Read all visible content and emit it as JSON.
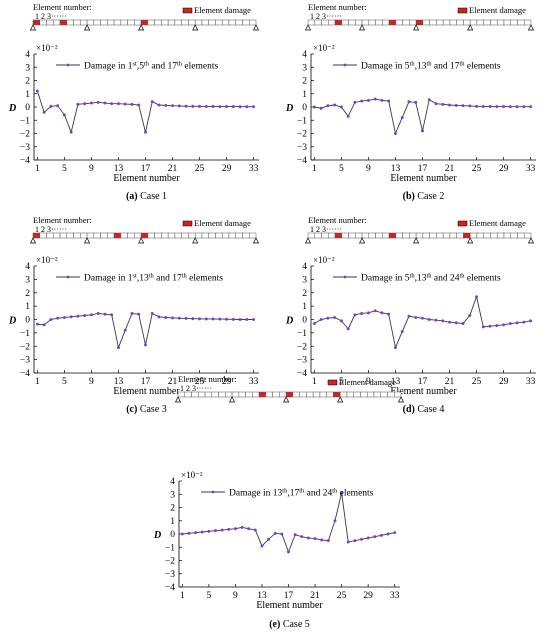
{
  "ui": {
    "colors": {
      "line": "#3a3a3a",
      "marker": "#7a3ad8",
      "damage": "#d42020",
      "axis": "#000000"
    }
  },
  "chart_data": [
    {
      "type": "line",
      "caption": "(a) Case 1",
      "beam_label": "Element number:",
      "beam_ticks": "1 2 3······",
      "legend_damage": "Element damage",
      "damaged_elements": [
        1,
        5,
        17
      ],
      "legend_line": "Damage in 1st,5th and 17th elements",
      "ylabel": "D",
      "xlabel": "Element number",
      "exponent": "×10⁻²",
      "ylim": [
        -4,
        4
      ],
      "yticks": [
        -4,
        -3,
        -2,
        -1,
        0,
        1,
        2,
        3,
        4
      ],
      "xticks": [
        1,
        5,
        9,
        13,
        17,
        21,
        25,
        29,
        33
      ],
      "x": [
        1,
        2,
        3,
        4,
        5,
        6,
        7,
        8,
        9,
        10,
        11,
        12,
        13,
        14,
        15,
        16,
        17,
        18,
        19,
        20,
        21,
        22,
        23,
        24,
        25,
        26,
        27,
        28,
        29,
        30,
        31,
        32,
        33
      ],
      "values": [
        1.2,
        -0.4,
        0.05,
        0.1,
        -0.6,
        -1.9,
        0.2,
        0.25,
        0.3,
        0.35,
        0.3,
        0.25,
        0.25,
        0.22,
        0.2,
        0.15,
        -1.9,
        0.4,
        0.15,
        0.12,
        0.1,
        0.08,
        0.06,
        0.05,
        0.05,
        0.04,
        0.04,
        0.03,
        0.03,
        0.03,
        0.02,
        0.02,
        0.02
      ]
    },
    {
      "type": "line",
      "caption": "(b) Case 2",
      "beam_label": "Element number:",
      "beam_ticks": "1 2 3······",
      "legend_damage": "Element damage",
      "damaged_elements": [
        5,
        13,
        17
      ],
      "legend_line": "Damage in 5th,13th and 17th elements",
      "ylabel": "D",
      "xlabel": "Element number",
      "exponent": "×10⁻²",
      "ylim": [
        -4,
        4
      ],
      "yticks": [
        -4,
        -3,
        -2,
        -1,
        0,
        1,
        2,
        3,
        4
      ],
      "xticks": [
        1,
        5,
        9,
        13,
        17,
        21,
        25,
        29,
        33
      ],
      "x": [
        1,
        2,
        3,
        4,
        5,
        6,
        7,
        8,
        9,
        10,
        11,
        12,
        13,
        14,
        15,
        16,
        17,
        18,
        19,
        20,
        21,
        22,
        23,
        24,
        25,
        26,
        27,
        28,
        29,
        30,
        31,
        32,
        33
      ],
      "values": [
        0,
        -0.1,
        0.1,
        0.15,
        0,
        -0.7,
        0.35,
        0.45,
        0.5,
        0.6,
        0.5,
        0.45,
        -2.0,
        -0.8,
        0.4,
        0.35,
        -1.8,
        0.55,
        0.25,
        0.2,
        0.15,
        0.12,
        0.1,
        0.08,
        0.05,
        0.04,
        0.04,
        0.03,
        0.03,
        0.02,
        0.02,
        0.02,
        0.02
      ]
    },
    {
      "type": "line",
      "caption": "(c) Case 3",
      "beam_label": "Element number:",
      "beam_ticks": "1 2 3······",
      "legend_damage": "Element damage",
      "damaged_elements": [
        1,
        13,
        17
      ],
      "legend_line": "Damage in 1st,13th and 17th elements",
      "ylabel": "D",
      "xlabel": "Element number",
      "exponent": "×10⁻²",
      "ylim": [
        -4,
        4
      ],
      "yticks": [
        -4,
        -3,
        -2,
        -1,
        0,
        1,
        2,
        3,
        4
      ],
      "xticks": [
        1,
        5,
        9,
        13,
        17,
        21,
        25,
        29,
        33
      ],
      "x": [
        1,
        2,
        3,
        4,
        5,
        6,
        7,
        8,
        9,
        10,
        11,
        12,
        13,
        14,
        15,
        16,
        17,
        18,
        19,
        20,
        21,
        22,
        23,
        24,
        25,
        26,
        27,
        28,
        29,
        30,
        31,
        32,
        33
      ],
      "values": [
        -0.35,
        -0.4,
        0,
        0.1,
        0.15,
        0.2,
        0.25,
        0.3,
        0.35,
        0.45,
        0.4,
        0.35,
        -2.1,
        -0.8,
        0.45,
        0.4,
        -1.9,
        0.45,
        0.2,
        0.15,
        0.12,
        0.1,
        0.08,
        0.06,
        0.05,
        0.04,
        0.04,
        0.03,
        0.02,
        0.01,
        0,
        0,
        0
      ]
    },
    {
      "type": "line",
      "caption": "(d) Case 4",
      "beam_label": "Element number:",
      "beam_ticks": "1 2 3······",
      "legend_damage": "Element damage",
      "damaged_elements": [
        5,
        13,
        24
      ],
      "legend_line": "Damage in 5th,13th and 24th elements",
      "ylabel": "D",
      "xlabel": "Element number",
      "exponent": "×10⁻²",
      "ylim": [
        -4,
        4
      ],
      "yticks": [
        -4,
        -3,
        -2,
        -1,
        0,
        1,
        2,
        3,
        4
      ],
      "xticks": [
        1,
        5,
        9,
        13,
        17,
        21,
        25,
        29,
        33
      ],
      "x": [
        1,
        2,
        3,
        4,
        5,
        6,
        7,
        8,
        9,
        10,
        11,
        12,
        13,
        14,
        15,
        16,
        17,
        18,
        19,
        20,
        21,
        22,
        23,
        24,
        25,
        26,
        27,
        28,
        29,
        30,
        31,
        32,
        33
      ],
      "values": [
        -0.3,
        0,
        0.1,
        0.15,
        -0.1,
        -0.7,
        0.35,
        0.45,
        0.5,
        0.65,
        0.5,
        0.4,
        -2.1,
        -0.9,
        0.25,
        0.15,
        0.1,
        0,
        -0.05,
        -0.1,
        -0.2,
        -0.25,
        -0.3,
        0.3,
        1.7,
        -0.55,
        -0.5,
        -0.45,
        -0.4,
        -0.3,
        -0.25,
        -0.2,
        -0.1
      ]
    },
    {
      "type": "line",
      "caption": "(e) Case 5",
      "beam_label": "Element number:",
      "beam_ticks": "1 2 3······",
      "legend_damage": "Element damage",
      "damaged_elements": [
        13,
        17,
        24
      ],
      "legend_line": "Damage in 13th,17th and 24th elements",
      "ylabel": "D",
      "xlabel": "Element number",
      "exponent": "×10⁻²",
      "ylim": [
        -4,
        4
      ],
      "yticks": [
        -4,
        -3,
        -2,
        -1,
        0,
        1,
        2,
        3,
        4
      ],
      "xticks": [
        1,
        5,
        9,
        13,
        17,
        21,
        25,
        29,
        33
      ],
      "x": [
        1,
        2,
        3,
        4,
        5,
        6,
        7,
        8,
        9,
        10,
        11,
        12,
        13,
        14,
        15,
        16,
        17,
        18,
        19,
        20,
        21,
        22,
        23,
        24,
        25,
        26,
        27,
        28,
        29,
        30,
        31,
        32,
        33
      ],
      "values": [
        0,
        0.05,
        0.1,
        0.15,
        0.2,
        0.25,
        0.3,
        0.35,
        0.4,
        0.5,
        0.4,
        0.3,
        -0.9,
        -0.4,
        0.05,
        0,
        -1.35,
        -0.05,
        -0.2,
        -0.3,
        -0.35,
        -0.45,
        -0.5,
        1,
        3.1,
        -0.6,
        -0.5,
        -0.4,
        -0.3,
        -0.2,
        -0.1,
        0,
        0.1
      ]
    }
  ]
}
